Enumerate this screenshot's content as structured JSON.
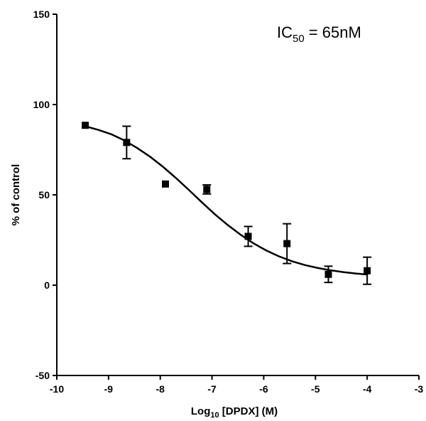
{
  "chart_data": {
    "type": "scatter",
    "title": "",
    "xlabel": {
      "main": "Log",
      "sub": "10",
      "rest": " [DPDX] (M)"
    },
    "ylabel": "% of control",
    "xlim": [
      -10,
      -3
    ],
    "ylim": [
      -50,
      150
    ],
    "xticks": [
      -10,
      -9,
      -8,
      -7,
      -6,
      -5,
      -4,
      -3
    ],
    "xtick_labels": [
      "-10",
      "-9",
      "-8",
      "-7",
      "-6",
      "-5",
      "-4",
      "-3"
    ],
    "yticks": [
      -50,
      0,
      50,
      100,
      150
    ],
    "ytick_labels": [
      "-50",
      "0",
      "50",
      "100",
      "150"
    ],
    "grid": false,
    "annotation": {
      "main": "IC",
      "sub": "50",
      "rest": " = 65nM"
    },
    "series": [
      {
        "points": [
          {
            "x": -9.45,
            "y": 88.5,
            "err": 0
          },
          {
            "x": -8.65,
            "y": 79,
            "err": 9
          },
          {
            "x": -7.9,
            "y": 56,
            "err": 0
          },
          {
            "x": -7.1,
            "y": 53,
            "err": 2.5
          },
          {
            "x": -6.3,
            "y": 27,
            "err": 5.5
          },
          {
            "x": -5.55,
            "y": 23,
            "err": 11
          },
          {
            "x": -4.75,
            "y": 6,
            "err": 4.5
          },
          {
            "x": -4.0,
            "y": 8,
            "err": 7.5
          }
        ],
        "fit": {
          "model": "sigmoidal",
          "x": [
            -9.45,
            -9.2,
            -8.95,
            -8.7,
            -8.45,
            -8.2,
            -7.95,
            -7.7,
            -7.45,
            -7.2,
            -6.95,
            -6.7,
            -6.45,
            -6.2,
            -5.95,
            -5.7,
            -5.45,
            -5.2,
            -4.95,
            -4.7,
            -4.45,
            -4.2,
            -4.0
          ],
          "y": [
            88.0,
            86.0,
            83.6,
            80.2,
            76.0,
            71.2,
            65.6,
            59.4,
            52.8,
            46.0,
            39.4,
            33.4,
            28.0,
            23.2,
            19.2,
            15.9,
            13.2,
            11.1,
            9.5,
            8.2,
            7.2,
            6.4,
            5.9
          ]
        }
      }
    ]
  }
}
